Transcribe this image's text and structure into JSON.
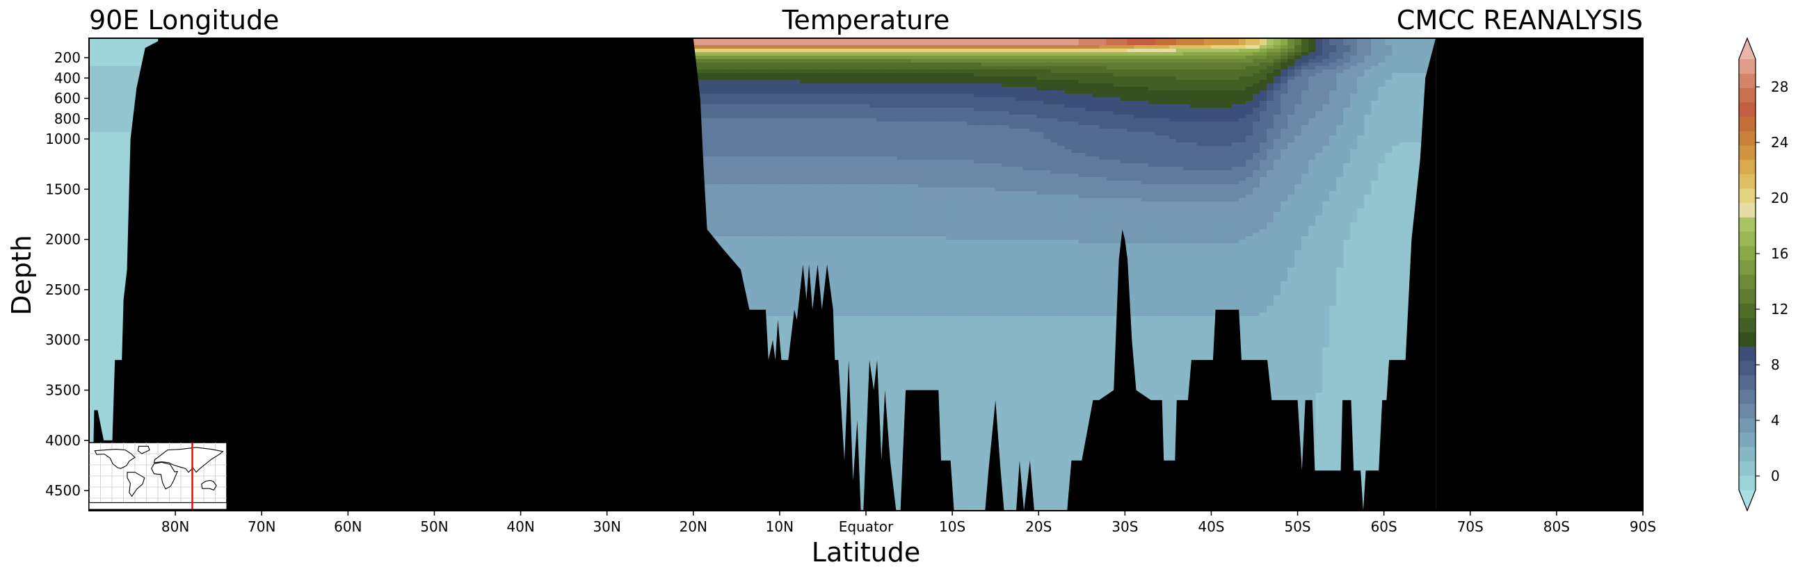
{
  "chart_data": {
    "type": "heatmap",
    "subtype": "filled-contour depth–latitude section",
    "title_left": "90E Longitude",
    "title_center": "Temperature",
    "title_right": "CMCC REANALYSIS",
    "xlabel": "Latitude",
    "ylabel": "Depth",
    "x_direction": "90N on left to 90S on right",
    "xlim": [
      90,
      -90
    ],
    "x_ticks": [
      {
        "value": 80,
        "label": "80N"
      },
      {
        "value": 70,
        "label": "70N"
      },
      {
        "value": 60,
        "label": "60N"
      },
      {
        "value": 50,
        "label": "50N"
      },
      {
        "value": 40,
        "label": "40N"
      },
      {
        "value": 30,
        "label": "30N"
      },
      {
        "value": 20,
        "label": "20N"
      },
      {
        "value": 10,
        "label": "10N"
      },
      {
        "value": 0,
        "label": "Equator"
      },
      {
        "value": -10,
        "label": "10S"
      },
      {
        "value": -20,
        "label": "20S"
      },
      {
        "value": -30,
        "label": "30S"
      },
      {
        "value": -40,
        "label": "40S"
      },
      {
        "value": -50,
        "label": "50S"
      },
      {
        "value": -60,
        "label": "60S"
      },
      {
        "value": -70,
        "label": "70S"
      },
      {
        "value": -80,
        "label": "80S"
      },
      {
        "value": -90,
        "label": "90S"
      }
    ],
    "y_scale": "piecewise: upper 0–1000 m expanded, 1000–4700 m linear",
    "ylim": [
      4700,
      0
    ],
    "y_ticks": [
      {
        "value": 200,
        "label": "200"
      },
      {
        "value": 400,
        "label": "400"
      },
      {
        "value": 600,
        "label": "600"
      },
      {
        "value": 800,
        "label": "800"
      },
      {
        "value": 1000,
        "label": "1000"
      },
      {
        "value": 1500,
        "label": "1500"
      },
      {
        "value": 2000,
        "label": "2000"
      },
      {
        "value": 2500,
        "label": "2500"
      },
      {
        "value": 3000,
        "label": "3000"
      },
      {
        "value": 3500,
        "label": "3500"
      },
      {
        "value": 4000,
        "label": "4000"
      },
      {
        "value": 4500,
        "label": "4500"
      }
    ],
    "colorbar": {
      "min": -1,
      "max": 30,
      "step": 1,
      "extend": "both",
      "ticks": [
        "0",
        "4",
        "8",
        "12",
        "16",
        "20",
        "24",
        "28"
      ],
      "colors": [
        "#a9dfe1",
        "#9dd4da",
        "#92c5d0",
        "#88b7c7",
        "#7ea8bd",
        "#7599b2",
        "#6b89a6",
        "#5f7a9a",
        "#536b8e",
        "#475c82",
        "#3b4f78",
        "#37501f",
        "#445f24",
        "#516d2a",
        "#5f7c30",
        "#6d8b37",
        "#7c993f",
        "#8ba848",
        "#9ab655",
        "#a9c263",
        "#e6dfa3",
        "#e5d281",
        "#dfbf63",
        "#d6aa4d",
        "#cf953f",
        "#c8823b",
        "#c46e3a",
        "#c35e40",
        "#c9704f",
        "#d3846a",
        "#df9d8a",
        "#ecb6aa"
      ]
    },
    "temperature_model_description": "warm >25 °C surface layer from ~20N to ~42S; thermocline deepening south to ~1000 m at 30–45S; 5–6 °C water below ~1000 m in the tropics; 1–4 °C deep water; near 0 °C in Arctic and near Antarctica",
    "land_mask": {
      "ocean_north_segment_lat": [
        90,
        82
      ],
      "continent_lat": [
        82,
        20
      ],
      "ocean_main_lat": [
        20,
        -66
      ],
      "antarctica_lat": [
        -66,
        -90
      ]
    },
    "bathymetry": [
      [
        90,
        4500
      ],
      [
        89.6,
        4500
      ],
      [
        89.4,
        3700
      ],
      [
        89.0,
        3700
      ],
      [
        88.3,
        4000
      ],
      [
        87.3,
        4000
      ],
      [
        87.0,
        3200
      ],
      [
        86.2,
        3200
      ],
      [
        86.0,
        2600
      ],
      [
        85.6,
        2300
      ],
      [
        85.2,
        1000
      ],
      [
        84.5,
        500
      ],
      [
        83.5,
        100
      ],
      [
        82.0,
        30
      ],
      [
        20.0,
        0
      ],
      [
        19.2,
        600
      ],
      [
        18.8,
        1300
      ],
      [
        18.4,
        1900
      ],
      [
        16.5,
        2100
      ],
      [
        14.5,
        2300
      ],
      [
        13.5,
        2700
      ],
      [
        11.6,
        2700
      ],
      [
        11.3,
        3200
      ],
      [
        10.8,
        3000
      ],
      [
        10.5,
        3200
      ],
      [
        10.2,
        2800
      ],
      [
        9.8,
        3200
      ],
      [
        9.0,
        3200
      ],
      [
        8.3,
        2700
      ],
      [
        8.0,
        2800
      ],
      [
        7.3,
        2250
      ],
      [
        6.9,
        2600
      ],
      [
        6.6,
        2250
      ],
      [
        6.2,
        2700
      ],
      [
        5.6,
        2250
      ],
      [
        5.1,
        2700
      ],
      [
        4.5,
        2250
      ],
      [
        3.8,
        2700
      ],
      [
        3.6,
        3200
      ],
      [
        3.2,
        3200
      ],
      [
        2.5,
        4200
      ],
      [
        2.0,
        3200
      ],
      [
        1.5,
        4400
      ],
      [
        1.0,
        3800
      ],
      [
        0.6,
        4700
      ],
      [
        0.3,
        4700
      ],
      [
        -0.4,
        3200
      ],
      [
        -0.9,
        3500
      ],
      [
        -1.3,
        3200
      ],
      [
        -1.8,
        4200
      ],
      [
        -2.2,
        3500
      ],
      [
        -2.8,
        4200
      ],
      [
        -3.5,
        4700
      ],
      [
        -4.0,
        4700
      ],
      [
        -4.6,
        3500
      ],
      [
        -5.5,
        3500
      ],
      [
        -6.0,
        3500
      ],
      [
        -8.4,
        3500
      ],
      [
        -8.7,
        4200
      ],
      [
        -9.8,
        4200
      ],
      [
        -10.2,
        4700
      ],
      [
        -11.5,
        4700
      ],
      [
        -13.8,
        4700
      ],
      [
        -14.2,
        4300
      ],
      [
        -15.0,
        3600
      ],
      [
        -15.6,
        4300
      ],
      [
        -16.0,
        4700
      ],
      [
        -17.4,
        4700
      ],
      [
        -17.8,
        4200
      ],
      [
        -18.3,
        4700
      ],
      [
        -19.0,
        4200
      ],
      [
        -19.5,
        4700
      ],
      [
        -23.3,
        4700
      ],
      [
        -23.8,
        4200
      ],
      [
        -25.0,
        4200
      ],
      [
        -26.3,
        3600
      ],
      [
        -27.0,
        3600
      ],
      [
        -28.7,
        3500
      ],
      [
        -29.3,
        2200
      ],
      [
        -29.7,
        1900
      ],
      [
        -30.0,
        2000
      ],
      [
        -30.3,
        2200
      ],
      [
        -30.8,
        3000
      ],
      [
        -31.3,
        3500
      ],
      [
        -33.0,
        3600
      ],
      [
        -34.3,
        3600
      ],
      [
        -34.5,
        4200
      ],
      [
        -35.8,
        4200
      ],
      [
        -36.0,
        3600
      ],
      [
        -37.3,
        3600
      ],
      [
        -37.7,
        3200
      ],
      [
        -40.2,
        3200
      ],
      [
        -40.5,
        2700
      ],
      [
        -43.2,
        2700
      ],
      [
        -43.5,
        3200
      ],
      [
        -46.5,
        3200
      ],
      [
        -47.0,
        3600
      ],
      [
        -50.0,
        3600
      ],
      [
        -50.5,
        4300
      ],
      [
        -50.9,
        3600
      ],
      [
        -51.7,
        3600
      ],
      [
        -52.0,
        4300
      ],
      [
        -55.0,
        4300
      ],
      [
        -55.2,
        3600
      ],
      [
        -56.2,
        3600
      ],
      [
        -56.5,
        4300
      ],
      [
        -57.3,
        4300
      ],
      [
        -57.6,
        4700
      ],
      [
        -57.9,
        4300
      ],
      [
        -59.4,
        4300
      ],
      [
        -59.8,
        3600
      ],
      [
        -60.3,
        3600
      ],
      [
        -60.6,
        3200
      ],
      [
        -62.5,
        3200
      ],
      [
        -63.2,
        2000
      ],
      [
        -64.2,
        1200
      ],
      [
        -64.8,
        400
      ],
      [
        -66.0,
        0
      ]
    ]
  },
  "inset_map": {
    "description": "world map locator showing 90E meridian",
    "line_color": "#ff0000",
    "meridian": "90E"
  }
}
